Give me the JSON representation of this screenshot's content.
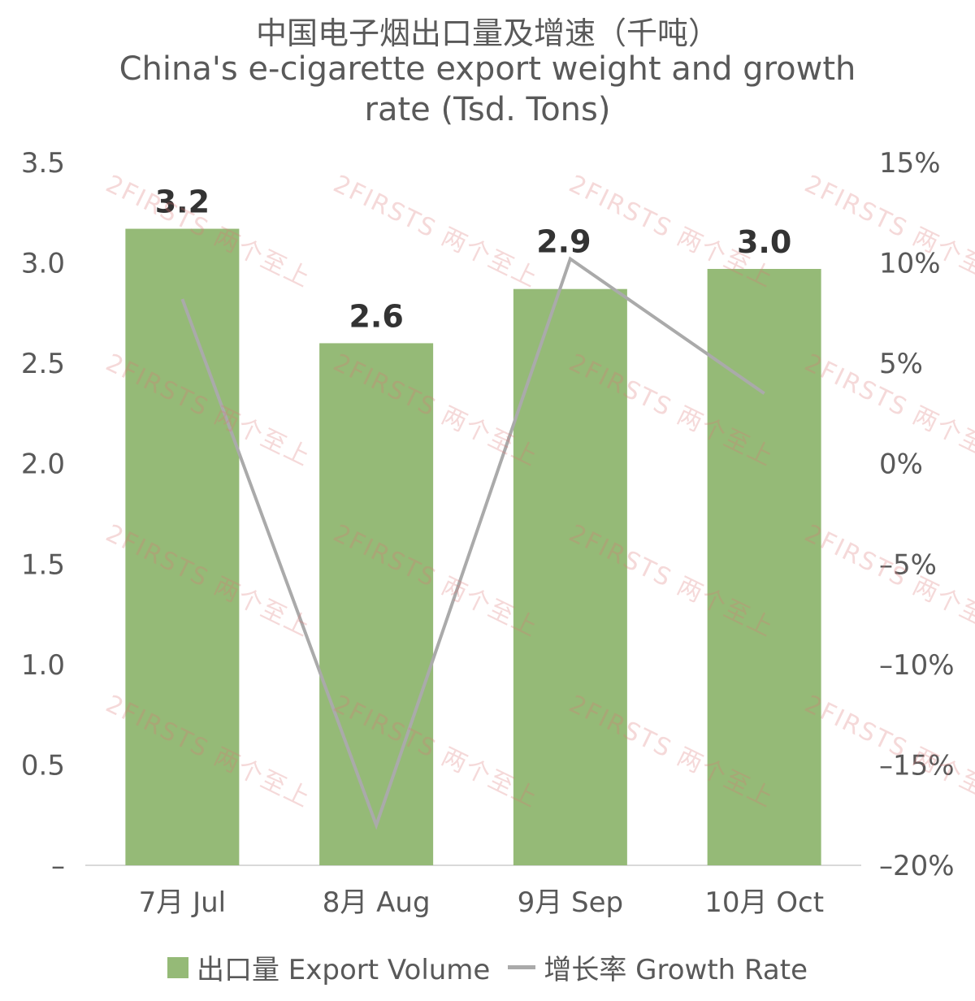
{
  "chart_data": {
    "type": "bar",
    "title": "中国电子烟出口量及增速（千吨）",
    "subtitle_lines": [
      "China's e-cigarette export weight and growth",
      "rate (Tsd. Tons)"
    ],
    "categories": [
      "7月 Jul",
      "8月 Aug",
      "9月 Sep",
      "10月 Oct"
    ],
    "series": [
      {
        "name": "出口量 Export Volume",
        "type": "bar",
        "axis": "left",
        "values": [
          3.17,
          2.6,
          2.87,
          2.97
        ],
        "labels": [
          "3.2",
          "2.6",
          "2.9",
          "3.0"
        ],
        "color": "#95BA77"
      },
      {
        "name": "增长率 Growth Rate",
        "type": "line",
        "axis": "right",
        "values": [
          8.2,
          -18.0,
          10.2,
          3.5
        ],
        "color": "#AAAAAA"
      }
    ],
    "y_left": {
      "min": 0,
      "max": 3.5,
      "ticks": [
        {
          "v": 0,
          "label": "–"
        },
        {
          "v": 0.5,
          "label": "0.5"
        },
        {
          "v": 1.0,
          "label": "1.0"
        },
        {
          "v": 1.5,
          "label": "1.5"
        },
        {
          "v": 2.0,
          "label": "2.0"
        },
        {
          "v": 2.5,
          "label": "2.5"
        },
        {
          "v": 3.0,
          "label": "3.0"
        },
        {
          "v": 3.5,
          "label": "3.5"
        }
      ]
    },
    "y_right": {
      "min": -20,
      "max": 15,
      "ticks": [
        {
          "v": -20,
          "label": "–20%"
        },
        {
          "v": -15,
          "label": "–15%"
        },
        {
          "v": -10,
          "label": "–10%"
        },
        {
          "v": -5,
          "label": "–5%"
        },
        {
          "v": 0,
          "label": "0%"
        },
        {
          "v": 5,
          "label": "5%"
        },
        {
          "v": 10,
          "label": "10%"
        },
        {
          "v": 15,
          "label": "15%"
        }
      ]
    },
    "grid": false,
    "legend_position": "bottom"
  },
  "legend": {
    "bar_label": "出口量 Export Volume",
    "line_label": "增长率 Growth Rate"
  },
  "watermark_text": "2FIRSTS 两个至上"
}
